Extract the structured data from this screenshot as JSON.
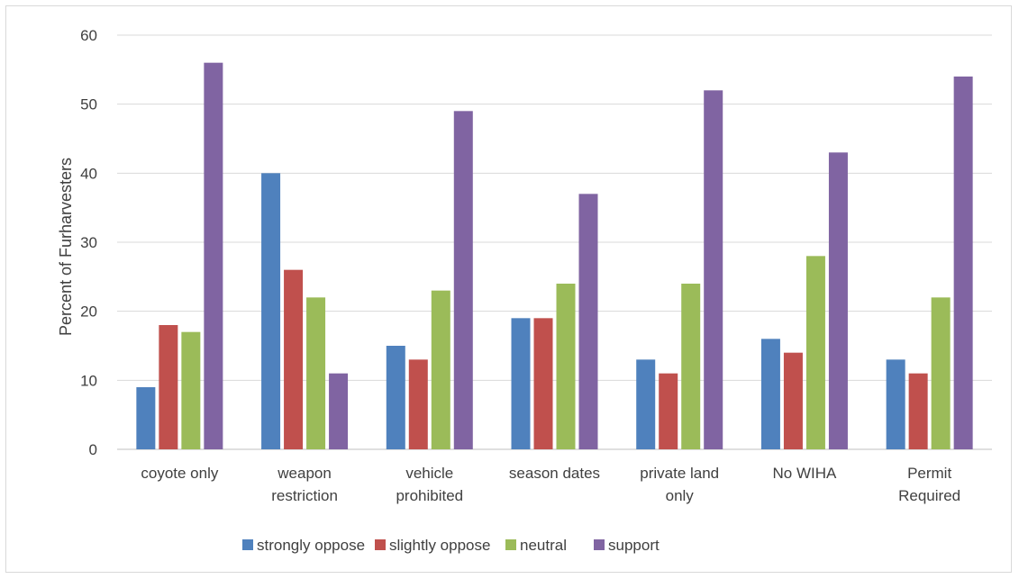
{
  "chart_data": {
    "type": "bar",
    "title": "",
    "xlabel": "",
    "ylabel": "Percent of Furharvesters",
    "ylim": [
      0,
      60
    ],
    "yticks": [
      0,
      10,
      20,
      30,
      40,
      50,
      60
    ],
    "grid": true,
    "legend_position": "bottom",
    "categories": [
      [
        "coyote only"
      ],
      [
        "weapon",
        "restriction"
      ],
      [
        "vehicle",
        "prohibited"
      ],
      [
        "season dates"
      ],
      [
        "private land",
        "only"
      ],
      [
        "No WIHA"
      ],
      [
        "Permit",
        "Required"
      ]
    ],
    "series": [
      {
        "name": "strongly oppose",
        "color": "#4f81bd",
        "values": [
          9,
          40,
          15,
          19,
          13,
          16,
          13
        ]
      },
      {
        "name": "slightly oppose",
        "color": "#c0504d",
        "values": [
          18,
          26,
          13,
          19,
          11,
          14,
          11
        ]
      },
      {
        "name": "neutral",
        "color": "#9bbb59",
        "values": [
          17,
          22,
          23,
          24,
          24,
          28,
          22
        ]
      },
      {
        "name": "support",
        "color": "#8064a2",
        "values": [
          56,
          11,
          49,
          37,
          52,
          43,
          54
        ]
      }
    ]
  }
}
